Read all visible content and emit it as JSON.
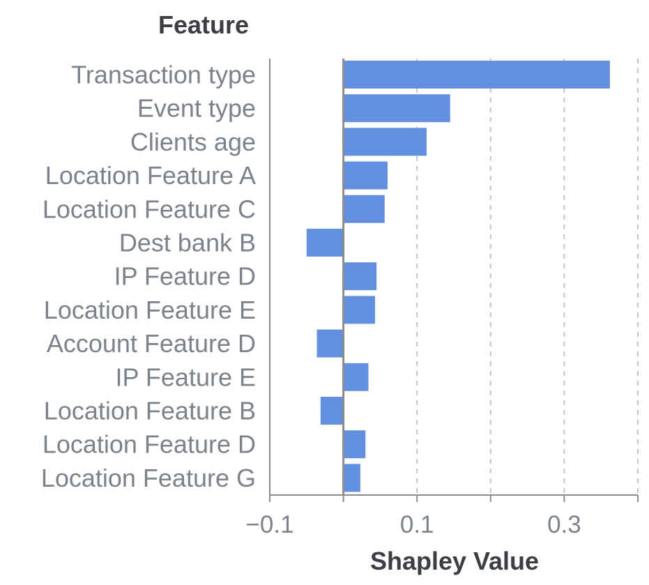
{
  "chart_data": {
    "type": "bar",
    "orientation": "horizontal",
    "title": "",
    "ylabel": "Feature",
    "xlabel": "Shapley Value",
    "categories": [
      "Transaction type",
      "Event type",
      "Clients age",
      "Location Feature A",
      "Location Feature C",
      "Dest bank B",
      "IP Feature D",
      "Location Feature E",
      "Account Feature D",
      "IP Feature E",
      "Location Feature B",
      "Location Feature D",
      "Location Feature G"
    ],
    "values": [
      0.362,
      0.145,
      0.113,
      0.06,
      0.056,
      -0.05,
      0.045,
      0.043,
      -0.036,
      0.034,
      -0.031,
      0.03,
      0.023
    ],
    "xlim": [
      -0.1,
      0.4
    ],
    "xticks": [
      -0.1,
      0.0,
      0.1,
      0.2,
      0.3,
      0.4
    ],
    "xtick_labels": [
      "−0.1",
      "",
      "0.1",
      "",
      "0.3",
      ""
    ],
    "grid": "vertical dashed",
    "legend": "none",
    "colors": {
      "bar": "#628fe0",
      "grid": "#c4c4c4",
      "axis": "#8c8c8c",
      "label": "#7b8289",
      "title": "#3b3f44"
    }
  }
}
